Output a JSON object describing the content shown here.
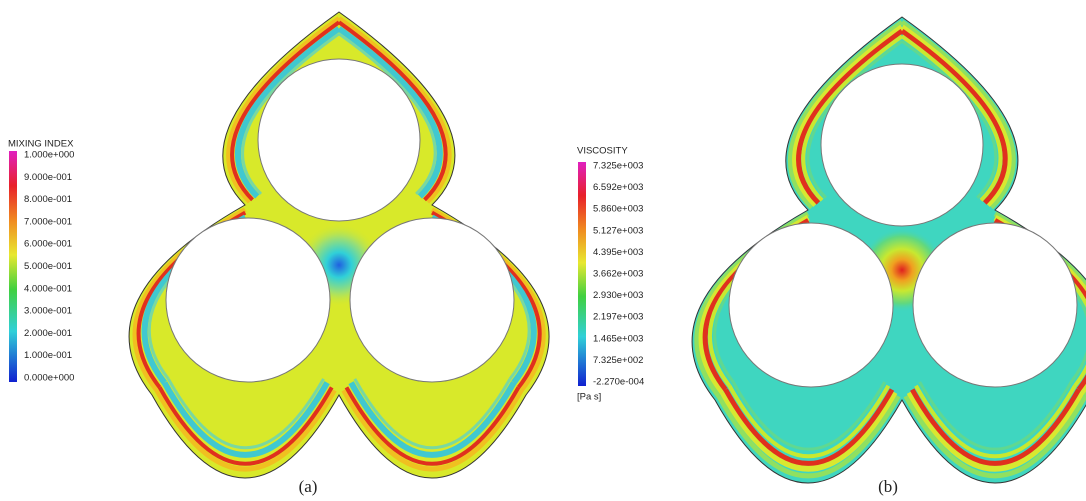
{
  "panels": [
    {
      "legend": {
        "title": "MIXING INDEX",
        "labels": [
          "1.000e+000",
          "9.000e-001",
          "8.000e-001",
          "7.000e-001",
          "6.000e-001",
          "5.000e-001",
          "4.000e-001",
          "3.000e-001",
          "2.000e-001",
          "1.000e-001",
          "0.000e+000"
        ]
      },
      "caption": "(a)"
    },
    {
      "legend": {
        "title": "VISCOSITY",
        "labels": [
          "7.325e+003",
          "6.592e+003",
          "5.860e+003",
          "5.127e+003",
          "4.395e+003",
          "3.662e+003",
          "2.930e+003",
          "2.197e+003",
          "1.465e+003",
          "7.325e+002",
          "-2.270e-004"
        ],
        "unit": "[Pa s]"
      },
      "caption": "(b)"
    }
  ]
}
